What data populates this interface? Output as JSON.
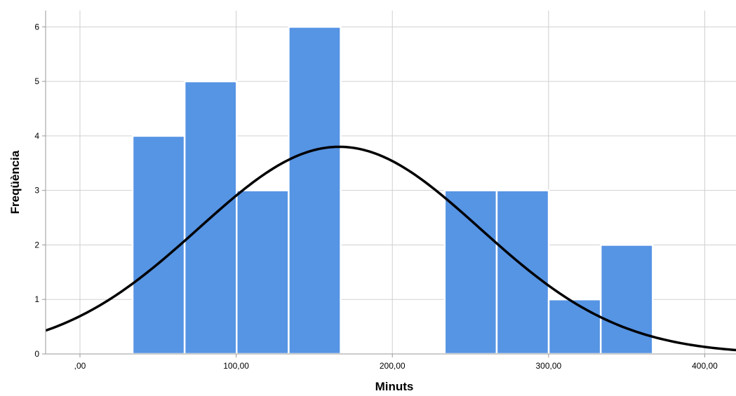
{
  "chart_data": {
    "type": "bar",
    "subtype": "histogram",
    "title": "",
    "xlabel": "Minuts",
    "ylabel": "Freqüència",
    "xlim": [
      -22,
      420
    ],
    "ylim": [
      0,
      6.3
    ],
    "bin_width": 33.3,
    "bins": [
      {
        "start": 33.7,
        "end": 67.0,
        "count": 4
      },
      {
        "start": 67.0,
        "end": 100.3,
        "count": 5
      },
      {
        "start": 100.3,
        "end": 133.6,
        "count": 3
      },
      {
        "start": 133.6,
        "end": 166.9,
        "count": 6
      },
      {
        "start": 166.9,
        "end": 200.2,
        "count": 0
      },
      {
        "start": 200.2,
        "end": 233.5,
        "count": 0
      },
      {
        "start": 233.5,
        "end": 266.8,
        "count": 3
      },
      {
        "start": 266.8,
        "end": 300.1,
        "count": 3
      },
      {
        "start": 300.1,
        "end": 333.4,
        "count": 1
      },
      {
        "start": 333.4,
        "end": 366.7,
        "count": 2
      }
    ],
    "x_ticks": [
      {
        "value": 0,
        "label": ",00"
      },
      {
        "value": 100,
        "label": "100,00"
      },
      {
        "value": 200,
        "label": "200,00"
      },
      {
        "value": 300,
        "label": "300,00"
      },
      {
        "value": 400,
        "label": "400,00"
      }
    ],
    "y_ticks": [
      0,
      1,
      2,
      3,
      4,
      5,
      6
    ],
    "normal_curve": {
      "mean": 166.0,
      "std": 90.0,
      "peak": 3.8
    },
    "grid": true,
    "colors": {
      "bar": "#5694e4",
      "bar_edge": "#ffffff",
      "curve": "#000000",
      "grid": "#d0d0d0",
      "axis": "#999999"
    }
  }
}
